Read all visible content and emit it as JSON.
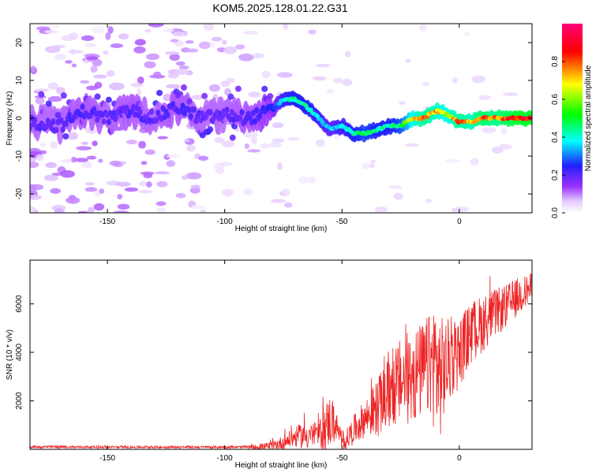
{
  "title": "KOM5.2025.128.01.22.G31",
  "chart_data": [
    {
      "type": "heatmap",
      "xlabel": "Height of straight line (km)",
      "ylabel": "Frequency (Hz)",
      "xlim": [
        -183,
        31
      ],
      "ylim": [
        -25,
        25
      ],
      "xticks": [
        -150,
        -100,
        -50,
        0
      ],
      "yticks": [
        20,
        10,
        0,
        -10,
        -20
      ],
      "colorbar": {
        "label": "Normalized spectral amplitude",
        "range": [
          0.0,
          1.0
        ],
        "ticks": [
          0.0,
          0.2,
          0.4,
          0.6,
          0.8
        ],
        "tick_labels": [
          "0.0",
          "0.2",
          "0.4",
          "0.6",
          "0.8"
        ],
        "colormap": [
          "#ffffff",
          "#9b30ff",
          "#0000ff",
          "#00ffff",
          "#00ff00",
          "#ffff00",
          "#ff0000",
          "#ff0066"
        ]
      },
      "ridge": {
        "x": [
          -183,
          -170,
          -160,
          -150,
          -140,
          -130,
          -120,
          -110,
          -100,
          -90,
          -80,
          -75,
          -70,
          -65,
          -60,
          -55,
          -50,
          -45,
          -40,
          -35,
          -30,
          -25,
          -20,
          -15,
          -10,
          -5,
          0,
          5,
          10,
          15,
          20,
          25,
          31
        ],
        "freq": [
          -1,
          -2,
          2,
          0,
          2,
          0,
          3,
          0,
          1,
          0,
          2,
          5,
          5,
          3,
          0,
          -3,
          -2,
          -4,
          -4,
          -3,
          -2,
          -2,
          0,
          0,
          2,
          1,
          -1,
          -1,
          0,
          0,
          0,
          0,
          0
        ],
        "amplitude": [
          0.2,
          0.2,
          0.22,
          0.2,
          0.22,
          0.2,
          0.22,
          0.2,
          0.2,
          0.22,
          0.25,
          0.4,
          0.45,
          0.45,
          0.4,
          0.35,
          0.4,
          0.45,
          0.5,
          0.45,
          0.45,
          0.5,
          0.7,
          0.8,
          0.75,
          0.7,
          0.8,
          0.75,
          0.85,
          0.8,
          0.85,
          0.9,
          0.9
        ]
      }
    },
    {
      "type": "line",
      "xlabel": "Height of straight line (km)",
      "ylabel": "SNR (10 * v/v)",
      "xlim": [
        -183,
        31
      ],
      "ylim": [
        0,
        7800
      ],
      "xticks": [
        -150,
        -100,
        -50,
        0
      ],
      "yticks": [
        2000,
        4000,
        6000
      ],
      "color": "#ee2222",
      "envelope": {
        "x": [
          -183,
          -150,
          -120,
          -90,
          -80,
          -75,
          -70,
          -65,
          -60,
          -58,
          -55,
          -52,
          -50,
          -45,
          -40,
          -35,
          -30,
          -25,
          -20,
          -15,
          -12,
          -10,
          -8,
          -5,
          0,
          5,
          10,
          15,
          20,
          25,
          31
        ],
        "base": [
          100,
          90,
          90,
          90,
          120,
          300,
          500,
          600,
          600,
          800,
          1200,
          900,
          200,
          800,
          1300,
          1700,
          2300,
          2800,
          3000,
          3300,
          3500,
          3500,
          3000,
          3600,
          4000,
          4800,
          5200,
          5600,
          5900,
          6300,
          6700
        ],
        "spread": [
          60,
          50,
          50,
          60,
          200,
          300,
          400,
          600,
          500,
          900,
          1100,
          500,
          300,
          600,
          800,
          1200,
          1500,
          1800,
          2000,
          2000,
          2200,
          3000,
          2500,
          1800,
          1500,
          1300,
          1200,
          1000,
          900,
          800,
          600
        ]
      }
    }
  ]
}
